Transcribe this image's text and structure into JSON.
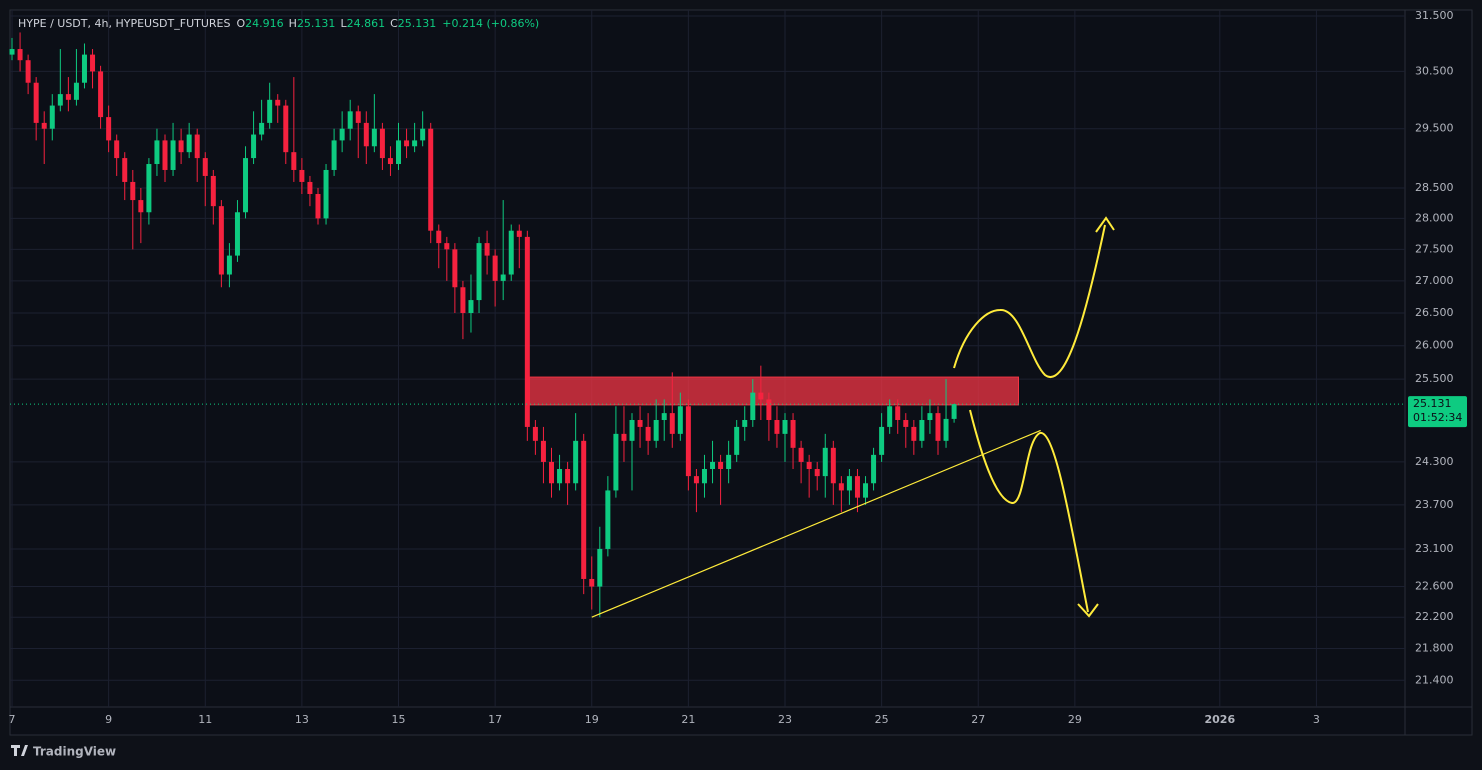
{
  "brand": "TradingView",
  "chart_data": {
    "type": "candlestick",
    "title": "HYPE / USDT, 4h, HYPEUSDT_FUTURES",
    "ohlc_labels": [
      "O",
      "H",
      "L",
      "C"
    ],
    "change": "+0.214 (+0.86%)",
    "last_price_timer": "01:52:34",
    "up_color": "#0ecb81",
    "down_color": "#f6223f",
    "log": true,
    "grid": true,
    "x": [
      0,
      4,
      8,
      12,
      16,
      20,
      24,
      28,
      32,
      36,
      40,
      44,
      48,
      52,
      56,
      60,
      64,
      68,
      72,
      76,
      80,
      84,
      88,
      92,
      96,
      100,
      104,
      108,
      112,
      116,
      120,
      124,
      128,
      132,
      136,
      140,
      144,
      148,
      152,
      156,
      160,
      164,
      168,
      172,
      176,
      180,
      184,
      188,
      192,
      196,
      200,
      204,
      208,
      212,
      216,
      220,
      224,
      228,
      232,
      236,
      240,
      244,
      248,
      252,
      256,
      260,
      264,
      268,
      272,
      276,
      280,
      284,
      288,
      292,
      296,
      300,
      304,
      308,
      312,
      316,
      320,
      324,
      328,
      332,
      336,
      340,
      344,
      348,
      352,
      356,
      360,
      364,
      368,
      372,
      376,
      380,
      384,
      388,
      392,
      396,
      400,
      404,
      408,
      412,
      416,
      420,
      424,
      428,
      432,
      436,
      440,
      444,
      448,
      452,
      456,
      460,
      464,
      468
    ],
    "open": [
      30.8,
      30.9,
      30.7,
      30.3,
      29.6,
      29.5,
      29.9,
      30.1,
      30.0,
      30.3,
      30.8,
      30.5,
      29.7,
      29.3,
      29.0,
      28.6,
      28.3,
      28.1,
      28.9,
      29.3,
      28.8,
      29.3,
      29.1,
      29.4,
      29.0,
      28.7,
      28.2,
      27.1,
      27.4,
      28.1,
      29.0,
      29.4,
      29.6,
      30.0,
      29.9,
      29.1,
      28.8,
      28.6,
      28.4,
      28.0,
      28.8,
      29.3,
      29.5,
      29.8,
      29.6,
      29.2,
      29.5,
      29.0,
      28.9,
      29.3,
      29.2,
      29.3,
      29.5,
      27.8,
      27.6,
      27.5,
      26.9,
      26.5,
      26.7,
      27.6,
      27.4,
      27.0,
      27.1,
      27.8,
      27.7,
      24.8,
      24.6,
      24.3,
      24.0,
      24.2,
      24.0,
      24.6,
      22.7,
      22.6,
      23.1,
      23.9,
      24.7,
      24.6,
      24.9,
      24.8,
      24.6,
      24.9,
      25.0,
      24.7,
      25.1,
      24.1,
      24.0,
      24.2,
      24.3,
      24.2,
      24.4,
      24.8,
      24.9,
      25.3,
      25.2,
      24.9,
      24.7,
      24.9,
      24.5,
      24.3,
      24.2,
      24.1,
      24.5,
      24.0,
      23.9,
      24.1,
      23.8,
      24.0,
      24.4,
      24.8,
      25.1,
      24.9,
      24.8,
      24.6,
      24.9,
      25.0,
      24.6,
      24.916
    ],
    "high": [
      31.1,
      31.2,
      30.8,
      30.4,
      29.8,
      30.1,
      30.9,
      30.4,
      30.9,
      31.0,
      30.9,
      30.6,
      29.9,
      29.4,
      29.1,
      28.8,
      28.5,
      29.0,
      29.5,
      29.4,
      29.6,
      29.5,
      29.6,
      29.5,
      29.1,
      28.8,
      28.3,
      27.6,
      28.3,
      29.2,
      29.8,
      30.0,
      30.3,
      30.1,
      30.0,
      30.4,
      29.0,
      28.7,
      28.5,
      28.9,
      29.5,
      29.8,
      30.0,
      29.9,
      29.8,
      30.1,
      29.6,
      29.2,
      29.6,
      29.5,
      29.6,
      29.8,
      29.6,
      27.9,
      27.7,
      27.6,
      27.0,
      27.1,
      27.7,
      27.8,
      27.5,
      28.3,
      27.9,
      27.9,
      27.8,
      24.9,
      24.8,
      24.5,
      24.4,
      24.3,
      25.0,
      24.7,
      23.0,
      23.4,
      24.1,
      25.1,
      25.1,
      25.0,
      25.1,
      25.0,
      25.2,
      25.2,
      25.6,
      25.3,
      25.2,
      24.2,
      24.4,
      24.6,
      24.4,
      24.6,
      24.9,
      25.1,
      25.5,
      25.7,
      25.3,
      25.1,
      25.0,
      25.0,
      24.6,
      24.4,
      24.3,
      24.7,
      24.6,
      24.1,
      24.2,
      24.2,
      24.1,
      24.5,
      25.0,
      25.2,
      25.2,
      25.0,
      24.9,
      25.1,
      25.2,
      25.1,
      25.5,
      25.131
    ],
    "low": [
      30.7,
      30.5,
      30.1,
      29.3,
      28.9,
      29.3,
      29.8,
      29.8,
      29.9,
      30.2,
      30.2,
      29.5,
      29.1,
      28.7,
      28.3,
      27.5,
      27.6,
      27.9,
      28.7,
      28.6,
      28.7,
      28.9,
      29.0,
      28.6,
      28.2,
      27.9,
      26.9,
      26.9,
      27.3,
      28.0,
      28.9,
      29.3,
      29.5,
      29.6,
      28.9,
      28.6,
      28.4,
      28.2,
      27.9,
      27.9,
      28.7,
      29.1,
      29.3,
      29.0,
      28.9,
      29.1,
      28.8,
      28.7,
      28.8,
      29.0,
      29.1,
      29.2,
      27.6,
      27.2,
      27.0,
      26.5,
      26.1,
      26.2,
      26.5,
      27.1,
      26.6,
      26.7,
      27.0,
      27.2,
      24.6,
      24.4,
      24.0,
      23.8,
      23.9,
      23.7,
      23.9,
      22.5,
      22.3,
      22.2,
      23.0,
      23.8,
      24.3,
      23.9,
      24.5,
      24.4,
      24.5,
      24.6,
      24.5,
      24.6,
      23.9,
      23.6,
      23.8,
      24.0,
      23.7,
      24.0,
      24.3,
      24.6,
      24.8,
      24.9,
      24.6,
      24.5,
      24.3,
      24.2,
      24.0,
      23.8,
      23.9,
      23.8,
      23.7,
      23.6,
      23.7,
      23.6,
      23.7,
      23.9,
      24.3,
      24.7,
      24.7,
      24.5,
      24.4,
      24.5,
      24.7,
      24.4,
      24.5,
      24.861
    ],
    "close": [
      30.9,
      30.7,
      30.3,
      29.6,
      29.5,
      29.9,
      30.1,
      30.0,
      30.3,
      30.8,
      30.5,
      29.7,
      29.3,
      29.0,
      28.6,
      28.3,
      28.1,
      28.9,
      29.3,
      28.8,
      29.3,
      29.1,
      29.4,
      29.0,
      28.7,
      28.2,
      27.1,
      27.4,
      28.1,
      29.0,
      29.4,
      29.6,
      30.0,
      29.9,
      29.1,
      28.8,
      28.6,
      28.4,
      28.0,
      28.8,
      29.3,
      29.5,
      29.8,
      29.6,
      29.2,
      29.5,
      29.0,
      28.9,
      29.3,
      29.2,
      29.3,
      29.5,
      27.8,
      27.6,
      27.5,
      26.9,
      26.5,
      26.7,
      27.6,
      27.4,
      27.0,
      27.1,
      27.8,
      27.7,
      24.8,
      24.6,
      24.3,
      24.0,
      24.2,
      24.0,
      24.6,
      22.7,
      22.6,
      23.1,
      23.9,
      24.7,
      24.6,
      24.9,
      24.8,
      24.6,
      24.9,
      25.0,
      24.7,
      25.1,
      24.1,
      24.0,
      24.2,
      24.3,
      24.2,
      24.4,
      24.8,
      24.9,
      25.3,
      25.2,
      24.9,
      24.7,
      24.9,
      24.5,
      24.3,
      24.2,
      24.1,
      24.5,
      24.0,
      23.9,
      24.1,
      23.8,
      24.0,
      24.4,
      24.8,
      25.1,
      24.9,
      24.8,
      24.6,
      24.9,
      25.0,
      24.6,
      24.916,
      25.131
    ],
    "xlim": [
      -1,
      692
    ],
    "xticks": [
      {
        "value": 0,
        "label": "7"
      },
      {
        "value": 48,
        "label": "9"
      },
      {
        "value": 96,
        "label": "11"
      },
      {
        "value": 144,
        "label": "13"
      },
      {
        "value": 192,
        "label": "15"
      },
      {
        "value": 240,
        "label": "17"
      },
      {
        "value": 288,
        "label": "19"
      },
      {
        "value": 336,
        "label": "21"
      },
      {
        "value": 384,
        "label": "23"
      },
      {
        "value": 432,
        "label": "25"
      },
      {
        "value": 480,
        "label": "27"
      },
      {
        "value": 528,
        "label": "29"
      },
      {
        "value": 600,
        "label": "2026"
      },
      {
        "value": 648,
        "label": "3"
      }
    ],
    "ylim": [
      21.07,
      31.61
    ],
    "yticks": [
      {
        "value": 31.5,
        "label": "31.500"
      },
      {
        "value": 30.5,
        "label": "30.500"
      },
      {
        "value": 29.5,
        "label": "29.500"
      },
      {
        "value": 28.5,
        "label": "28.500"
      },
      {
        "value": 28,
        "label": "28.000"
      },
      {
        "value": 27.5,
        "label": "27.500"
      },
      {
        "value": 27,
        "label": "27.000"
      },
      {
        "value": 26.5,
        "label": "26.500"
      },
      {
        "value": 26,
        "label": "26.000"
      },
      {
        "value": 25.5,
        "label": "25.500"
      },
      {
        "value": 24.3,
        "label": "24.300"
      },
      {
        "value": 23.7,
        "label": "23.700"
      },
      {
        "value": 23.1,
        "label": "23.100"
      },
      {
        "value": 22.6,
        "label": "22.600"
      },
      {
        "value": 22.2,
        "label": "22.200"
      },
      {
        "value": 21.8,
        "label": "21.800"
      },
      {
        "value": 21.4,
        "label": "21.400"
      }
    ],
    "zone": {
      "x": [
        257,
        500
      ],
      "y": [
        25.12,
        25.53
      ],
      "color": "#f23645"
    },
    "trendline": {
      "x": [
        288,
        511
      ],
      "y": [
        22.2,
        24.75
      ],
      "color": "#ffeb3b"
    }
  }
}
